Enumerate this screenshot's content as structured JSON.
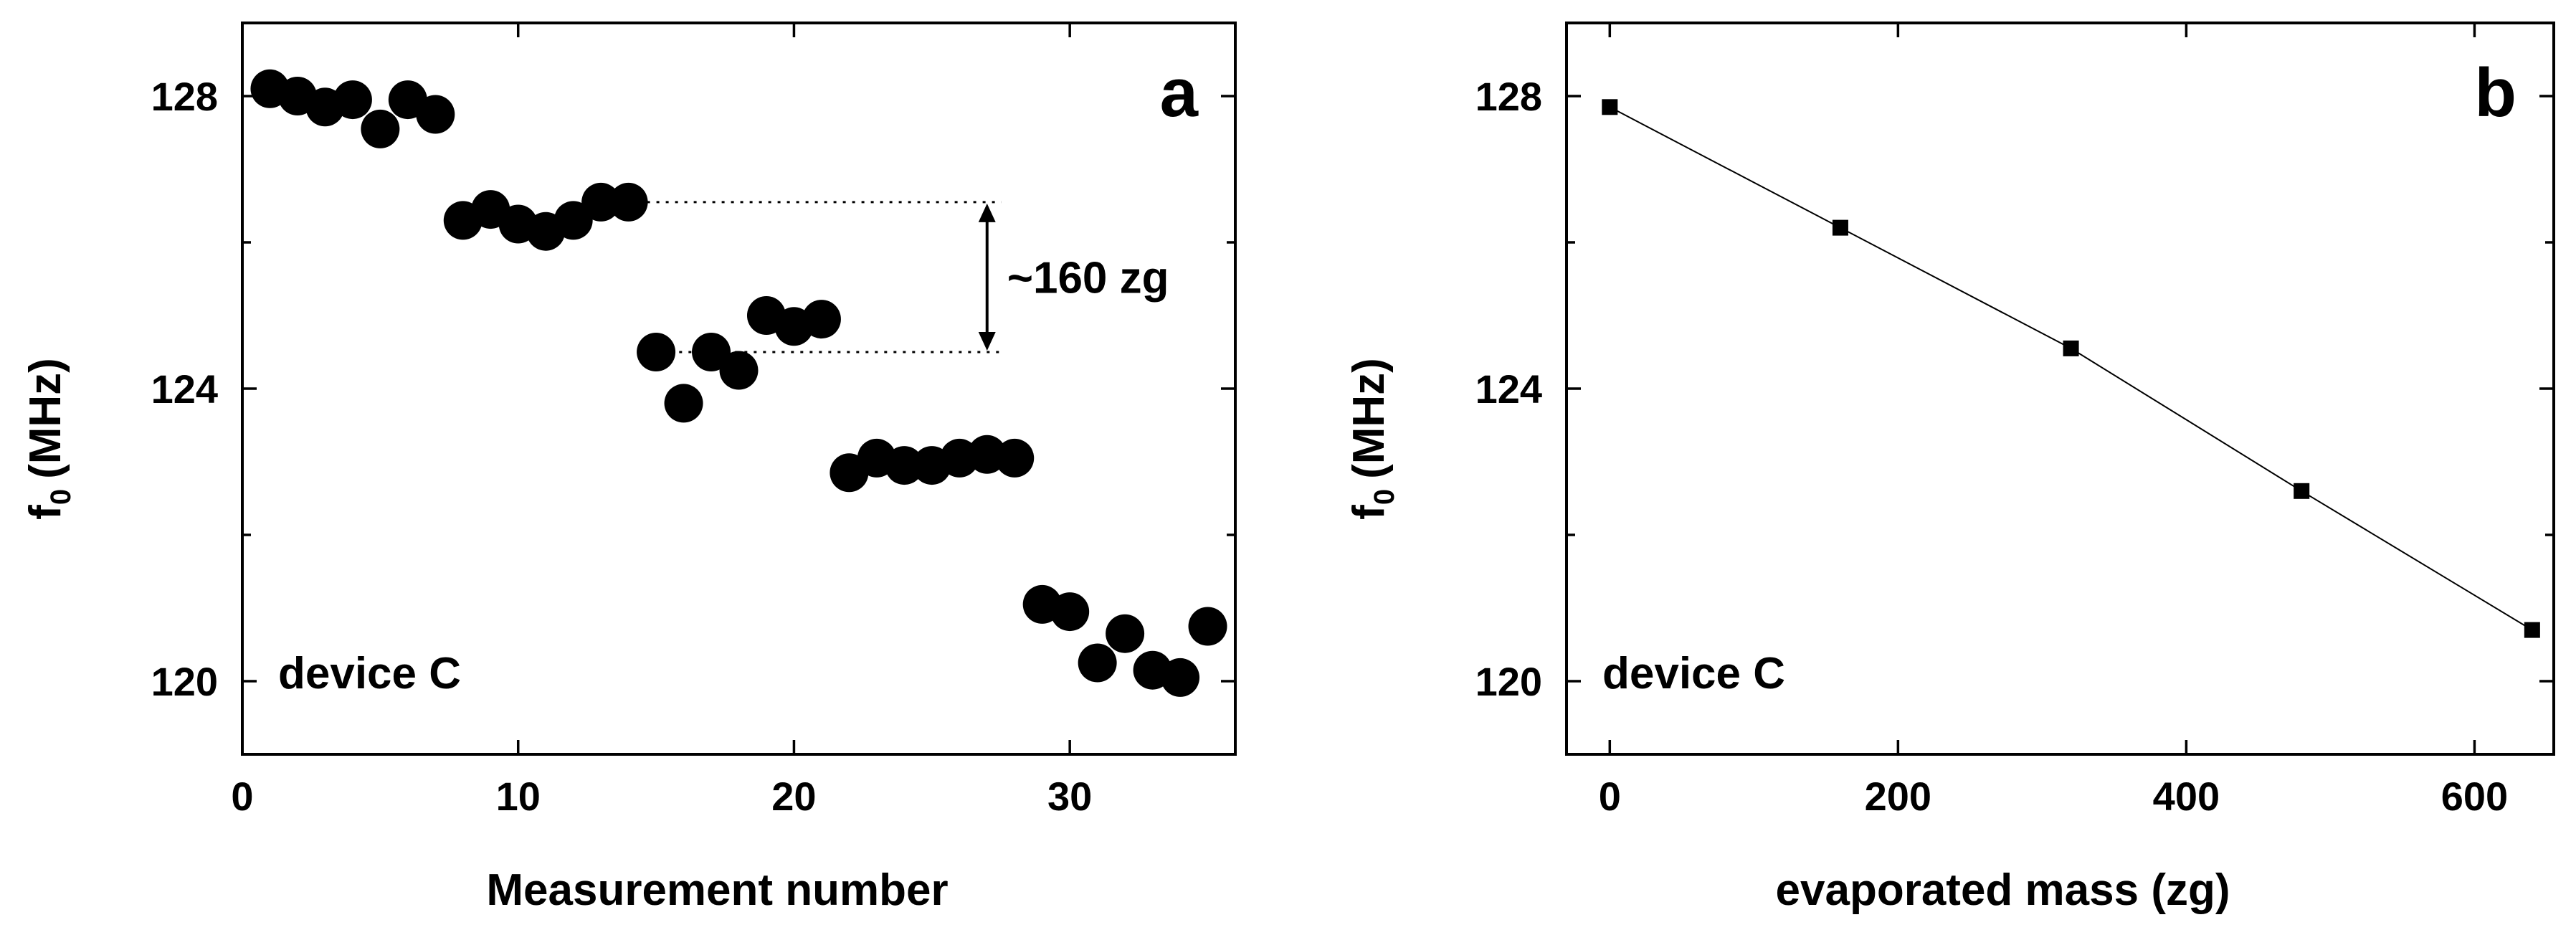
{
  "chart_data": [
    {
      "type": "scatter",
      "panel_label": "a",
      "xlabel": "Measurement number",
      "ylabel_main": "f",
      "ylabel_sub": "0",
      "ylabel_unit": "(MHz)",
      "xlim": [
        0,
        36
      ],
      "ylim": [
        119,
        129
      ],
      "xticks": [
        0,
        10,
        20,
        30
      ],
      "yticks": [
        120,
        124,
        128
      ],
      "minor_yticks": [
        122,
        126
      ],
      "annotation_text": "device C",
      "bracket": {
        "label": "~160 zg",
        "y_top": 126.55,
        "y_bottom": 124.5,
        "x_from": 14,
        "x_arrow": 27
      },
      "series": [
        {
          "x": [
            1,
            2,
            3,
            4,
            5,
            6,
            7,
            8,
            9,
            10,
            11,
            12,
            13,
            14,
            15,
            16,
            17,
            18,
            19,
            20,
            21,
            22,
            23,
            24,
            25,
            26,
            27,
            28,
            29,
            30,
            31,
            32,
            33,
            34,
            35
          ],
          "y": [
            128.1,
            128.0,
            127.85,
            127.95,
            127.55,
            127.95,
            127.75,
            126.3,
            126.45,
            126.25,
            126.15,
            126.3,
            126.55,
            126.55,
            124.5,
            123.8,
            124.5,
            124.25,
            125.0,
            124.85,
            124.95,
            122.85,
            123.05,
            122.95,
            122.95,
            123.05,
            123.1,
            123.05,
            121.05,
            120.95,
            120.25,
            120.65,
            120.15,
            120.05,
            120.75
          ]
        }
      ]
    },
    {
      "type": "line",
      "panel_label": "b",
      "xlabel": "evaporated mass (zg)",
      "ylabel_main": "f",
      "ylabel_sub": "0",
      "ylabel_unit": "(MHz)",
      "xlim": [
        -30,
        655
      ],
      "ylim": [
        119,
        129
      ],
      "xticks": [
        0,
        200,
        400,
        600
      ],
      "yticks": [
        120,
        124,
        128
      ],
      "minor_yticks": [
        122,
        126
      ],
      "annotation_text": "device C",
      "series": [
        {
          "x": [
            0,
            160,
            320,
            480,
            640
          ],
          "y": [
            127.85,
            126.2,
            124.55,
            122.6,
            120.7
          ]
        }
      ]
    }
  ]
}
